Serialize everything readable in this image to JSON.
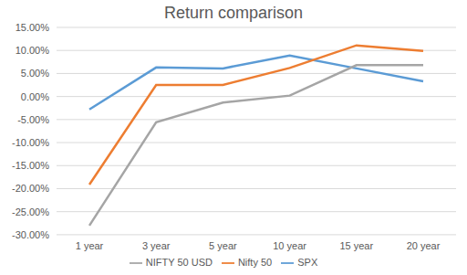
{
  "chart_data": {
    "type": "line",
    "title": "Return comparison",
    "categories": [
      "1 year",
      "3 year",
      "5 year",
      "10 year",
      "15 year",
      "20 year"
    ],
    "series": [
      {
        "name": "SPX",
        "color": "#5b9bd5",
        "values": [
          -2.8,
          6.3,
          6.1,
          8.9,
          6.1,
          3.3
        ]
      },
      {
        "name": "Nifty 50",
        "color": "#ed7d31",
        "values": [
          -19.1,
          2.5,
          2.5,
          6.2,
          11.1,
          9.9
        ]
      },
      {
        "name": "NIFTY 50 USD",
        "color": "#a5a5a5",
        "values": [
          -28.0,
          -5.6,
          -1.3,
          0.2,
          6.8,
          6.8
        ]
      }
    ],
    "ylim": [
      -30,
      15
    ],
    "yticks": [
      {
        "value": -30,
        "label": "-30.00%"
      },
      {
        "value": -25,
        "label": "-25.00%"
      },
      {
        "value": -20,
        "label": "-20.00%"
      },
      {
        "value": -15,
        "label": "-15.00%"
      },
      {
        "value": -10,
        "label": "-10.00%"
      },
      {
        "value": -5,
        "label": "-5.00%"
      },
      {
        "value": 0,
        "label": "0.00%"
      },
      {
        "value": 5,
        "label": "5.00%"
      },
      {
        "value": 10,
        "label": "10.00%"
      },
      {
        "value": 15,
        "label": "15.00%"
      }
    ],
    "grid": true,
    "legend": "bottom"
  }
}
